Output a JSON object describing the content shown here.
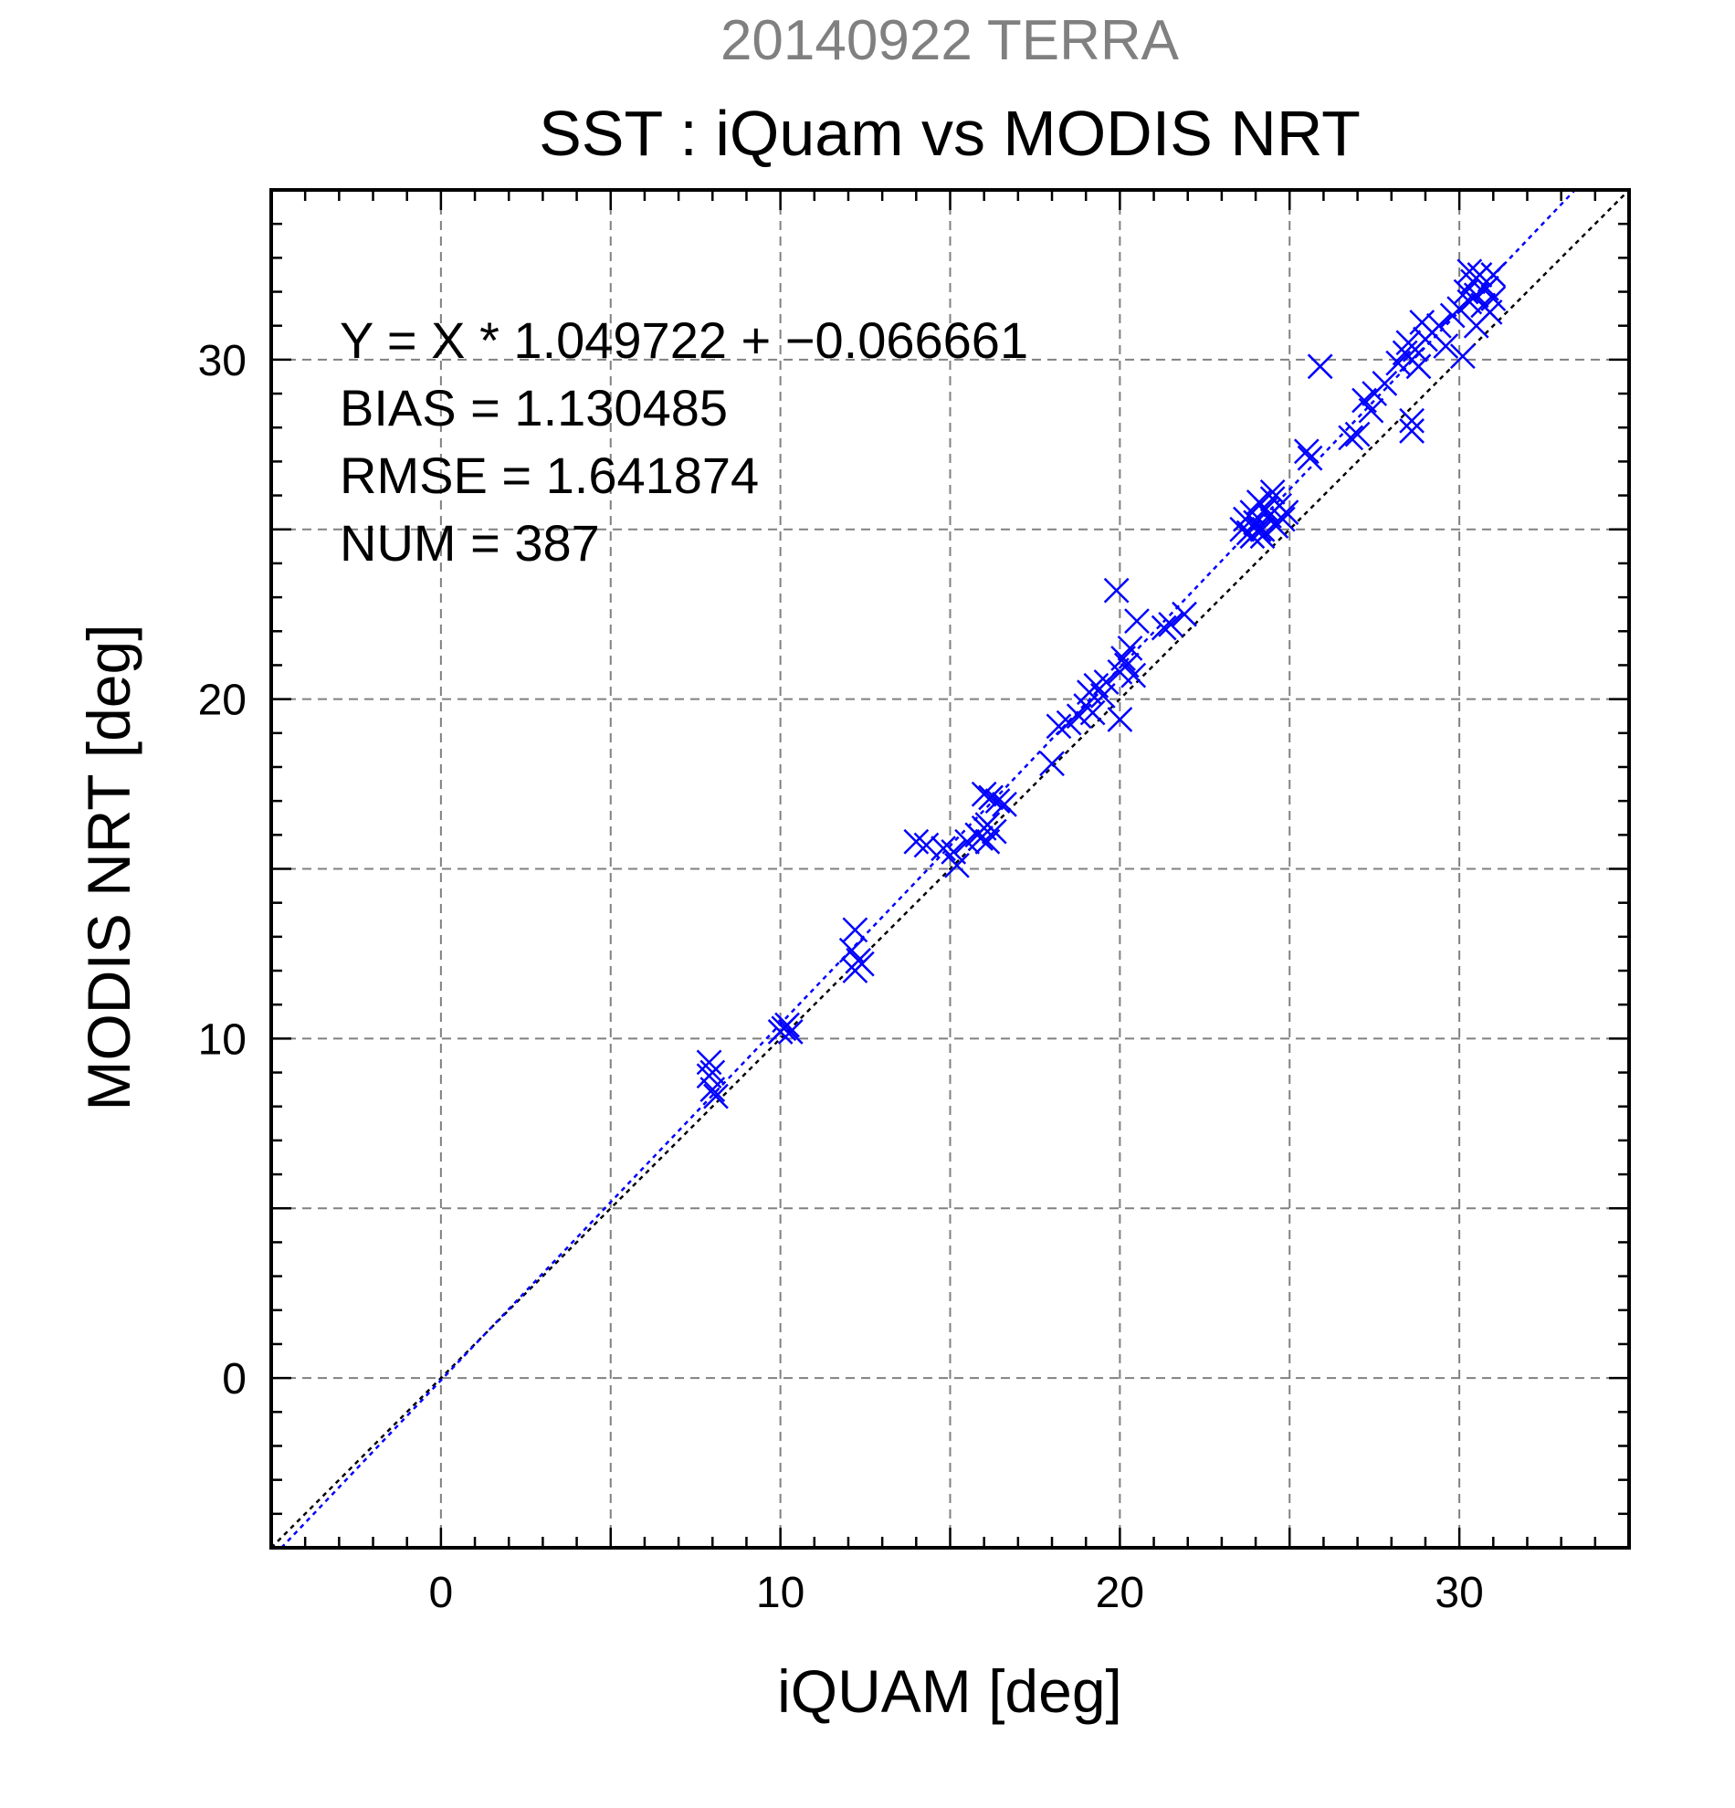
{
  "chart_data": {
    "type": "scatter",
    "subtitle": "20140922 TERRA",
    "title": "SST : iQuam vs MODIS NRT",
    "xlabel": "iQUAM [deg]",
    "ylabel": "MODIS NRT [deg]",
    "xlim": [
      -5,
      35
    ],
    "ylim": [
      -5,
      35
    ],
    "x_ticks": [
      "0",
      "10",
      "20",
      "30"
    ],
    "y_ticks": [
      "0",
      "10",
      "20",
      "30"
    ],
    "grid": true,
    "annotations": [
      "Y = X * 1.049722 + −0.066661",
      "BIAS = 1.130485",
      "RMSE = 1.641874",
      "NUM = 387"
    ],
    "fit": {
      "slope": 1.049722,
      "intercept": -0.066661,
      "color": "#0000ff"
    },
    "identity_line_color": "#000000",
    "marker_color": "#0000ff",
    "points": [
      [
        7.9,
        9.3
      ],
      [
        7.9,
        8.9
      ],
      [
        8.0,
        8.5
      ],
      [
        8.0,
        9.0
      ],
      [
        8.1,
        8.3
      ],
      [
        10.1,
        10.3
      ],
      [
        10.2,
        10.4
      ],
      [
        10.0,
        10.2
      ],
      [
        10.3,
        10.2
      ],
      [
        12.1,
        12.6
      ],
      [
        12.2,
        13.2
      ],
      [
        12.3,
        12.3
      ],
      [
        12.2,
        12.0
      ],
      [
        12.4,
        12.2
      ],
      [
        14.0,
        15.8
      ],
      [
        14.3,
        15.7
      ],
      [
        14.8,
        15.6
      ],
      [
        15.1,
        15.5
      ],
      [
        15.2,
        15.1
      ],
      [
        15.5,
        15.8
      ],
      [
        15.8,
        16.0
      ],
      [
        15.9,
        15.9
      ],
      [
        16.0,
        16.2
      ],
      [
        16.1,
        16.3
      ],
      [
        16.0,
        17.2
      ],
      [
        16.2,
        17.1
      ],
      [
        16.4,
        17.0
      ],
      [
        16.1,
        15.8
      ],
      [
        16.6,
        16.9
      ],
      [
        16.3,
        16.1
      ],
      [
        18.0,
        18.1
      ],
      [
        18.2,
        19.2
      ],
      [
        18.5,
        19.3
      ],
      [
        18.8,
        19.5
      ],
      [
        19.1,
        20.2
      ],
      [
        19.3,
        20.4
      ],
      [
        19.5,
        20.1
      ],
      [
        19.2,
        19.6
      ],
      [
        19.6,
        20.5
      ],
      [
        19.0,
        19.8
      ],
      [
        20.0,
        20.8
      ],
      [
        20.1,
        21.2
      ],
      [
        20.2,
        21.0
      ],
      [
        19.9,
        23.2
      ],
      [
        20.0,
        19.4
      ],
      [
        20.3,
        21.5
      ],
      [
        20.4,
        20.7
      ],
      [
        20.5,
        22.3
      ],
      [
        21.3,
        22.1
      ],
      [
        21.5,
        22.2
      ],
      [
        21.9,
        22.5
      ],
      [
        23.6,
        25.0
      ],
      [
        23.7,
        25.3
      ],
      [
        23.8,
        24.9
      ],
      [
        23.9,
        25.5
      ],
      [
        24.0,
        25.2
      ],
      [
        24.1,
        25.8
      ],
      [
        24.2,
        25.0
      ],
      [
        24.3,
        25.6
      ],
      [
        24.4,
        25.4
      ],
      [
        24.5,
        25.9
      ],
      [
        24.6,
        25.1
      ],
      [
        24.7,
        25.7
      ],
      [
        24.8,
        25.3
      ],
      [
        24.2,
        24.8
      ],
      [
        24.5,
        26.1
      ],
      [
        23.9,
        24.8
      ],
      [
        24.9,
        25.5
      ],
      [
        24.1,
        25.0
      ],
      [
        25.5,
        27.3
      ],
      [
        25.6,
        27.1
      ],
      [
        25.9,
        29.8
      ],
      [
        26.8,
        27.7
      ],
      [
        27.0,
        27.8
      ],
      [
        27.2,
        28.8
      ],
      [
        27.4,
        28.5
      ],
      [
        27.5,
        29.0
      ],
      [
        27.8,
        29.3
      ],
      [
        28.2,
        29.9
      ],
      [
        28.4,
        30.2
      ],
      [
        28.5,
        30.5
      ],
      [
        28.6,
        30.0
      ],
      [
        28.7,
        30.3
      ],
      [
        28.6,
        28.2
      ],
      [
        28.6,
        27.9
      ],
      [
        28.8,
        29.8
      ],
      [
        28.9,
        31.1
      ],
      [
        29.0,
        30.6
      ],
      [
        29.2,
        30.8
      ],
      [
        29.4,
        31.0
      ],
      [
        29.6,
        30.4
      ],
      [
        29.8,
        31.3
      ],
      [
        30.0,
        31.5
      ],
      [
        30.1,
        30.1
      ],
      [
        30.2,
        32.0
      ],
      [
        30.3,
        31.7
      ],
      [
        30.4,
        32.3
      ],
      [
        30.5,
        31.9
      ],
      [
        30.6,
        32.5
      ],
      [
        30.7,
        31.6
      ],
      [
        30.8,
        32.1
      ],
      [
        30.9,
        31.4
      ],
      [
        31.0,
        31.8
      ],
      [
        30.5,
        31.0
      ],
      [
        30.3,
        32.6
      ],
      [
        31.0,
        32.5
      ]
    ]
  }
}
